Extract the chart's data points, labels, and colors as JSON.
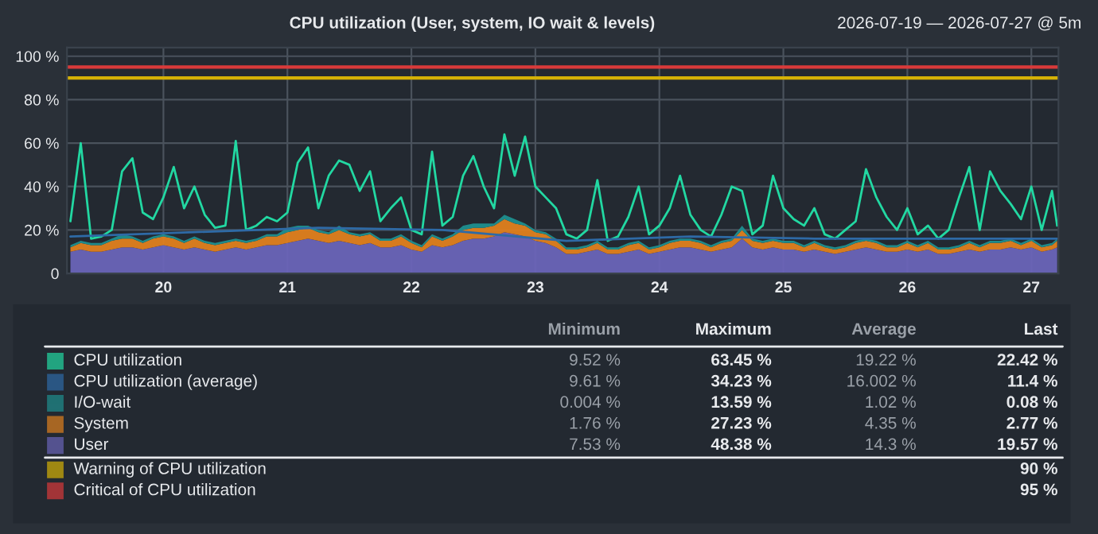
{
  "chart_data": {
    "type": "area",
    "stacked": true,
    "title": "CPU utilization (User, system, IO wait & levels)",
    "subtitle": "2026-07-19 — 2026-07-27 @ 5m",
    "x": [
      "2026-07-19T06:00",
      "2026-07-19T08:00",
      "2026-07-19T10:00",
      "2026-07-19T12:00",
      "2026-07-19T14:00",
      "2026-07-19T16:00",
      "2026-07-19T18:00",
      "2026-07-19T20:00",
      "2026-07-19T22:00",
      "2026-07-20T00:00",
      "2026-07-20T02:00",
      "2026-07-20T04:00",
      "2026-07-20T06:00",
      "2026-07-20T08:00",
      "2026-07-20T10:00",
      "2026-07-20T12:00",
      "2026-07-20T14:00",
      "2026-07-20T16:00",
      "2026-07-20T18:00",
      "2026-07-20T20:00",
      "2026-07-20T22:00",
      "2026-07-21T00:00",
      "2026-07-21T02:00",
      "2026-07-21T04:00",
      "2026-07-21T06:00",
      "2026-07-21T08:00",
      "2026-07-21T10:00",
      "2026-07-21T12:00",
      "2026-07-21T14:00",
      "2026-07-21T16:00",
      "2026-07-21T18:00",
      "2026-07-21T20:00",
      "2026-07-21T22:00",
      "2026-07-22T00:00",
      "2026-07-22T02:00",
      "2026-07-22T04:00",
      "2026-07-22T06:00",
      "2026-07-22T08:00",
      "2026-07-22T10:00",
      "2026-07-22T12:00",
      "2026-07-22T14:00",
      "2026-07-22T16:00",
      "2026-07-22T18:00",
      "2026-07-22T20:00",
      "2026-07-22T22:00",
      "2026-07-23T00:00",
      "2026-07-23T02:00",
      "2026-07-23T04:00",
      "2026-07-23T06:00",
      "2026-07-23T08:00",
      "2026-07-23T10:00",
      "2026-07-23T12:00",
      "2026-07-23T14:00",
      "2026-07-23T16:00",
      "2026-07-23T18:00",
      "2026-07-23T20:00",
      "2026-07-23T22:00",
      "2026-07-24T00:00",
      "2026-07-24T02:00",
      "2026-07-24T04:00",
      "2026-07-24T06:00",
      "2026-07-24T08:00",
      "2026-07-24T10:00",
      "2026-07-24T12:00",
      "2026-07-24T14:00",
      "2026-07-24T16:00",
      "2026-07-24T18:00",
      "2026-07-24T20:00",
      "2026-07-24T22:00",
      "2026-07-25T00:00",
      "2026-07-25T02:00",
      "2026-07-25T04:00",
      "2026-07-25T06:00",
      "2026-07-25T08:00",
      "2026-07-25T10:00",
      "2026-07-25T12:00",
      "2026-07-25T14:00",
      "2026-07-25T16:00",
      "2026-07-25T18:00",
      "2026-07-25T20:00",
      "2026-07-25T22:00",
      "2026-07-26T00:00",
      "2026-07-26T02:00",
      "2026-07-26T04:00",
      "2026-07-26T06:00",
      "2026-07-26T08:00",
      "2026-07-26T10:00",
      "2026-07-26T12:00",
      "2026-07-26T14:00",
      "2026-07-26T16:00",
      "2026-07-26T18:00",
      "2026-07-26T20:00",
      "2026-07-26T22:00",
      "2026-07-27T00:00",
      "2026-07-27T02:00",
      "2026-07-27T04:00",
      "2026-07-27T05:00"
    ],
    "series": [
      {
        "name": "CPU utilization",
        "type": "line",
        "color": "#22d8a2",
        "values": [
          24,
          60,
          16,
          17,
          20,
          47,
          53,
          28,
          25,
          35,
          49,
          30,
          40,
          27,
          21,
          22,
          61,
          20,
          22,
          26,
          24,
          28,
          51,
          58,
          30,
          45,
          52,
          50,
          38,
          47,
          24,
          30,
          35,
          20,
          18,
          56,
          22,
          26,
          45,
          54,
          40,
          30,
          64,
          45,
          63,
          40,
          35,
          30,
          18,
          16,
          20,
          43,
          15,
          17,
          26,
          40,
          18,
          22,
          30,
          45,
          27,
          20,
          17,
          27,
          40,
          38,
          18,
          22,
          45,
          30,
          25,
          22,
          30,
          18,
          16,
          20,
          24,
          48,
          35,
          26,
          20,
          30,
          18,
          22,
          16,
          20,
          35,
          49,
          20,
          47,
          38,
          32,
          25,
          40,
          20,
          38,
          22
        ]
      },
      {
        "name": "CPU utilization (average)",
        "type": "line",
        "color": "#2e6aa6",
        "x": [
          "2026-07-19T06:00",
          "2026-07-20T06:00",
          "2026-07-21T06:00",
          "2026-07-22T06:00",
          "2026-07-23T06:00",
          "2026-07-24T06:00",
          "2026-07-25T06:00",
          "2026-07-26T06:00",
          "2026-07-27T05:00"
        ],
        "values": [
          17,
          19,
          21,
          20,
          15,
          17,
          16,
          16,
          16
        ]
      },
      {
        "name": "User",
        "color": "#6a64b8",
        "values": [
          10,
          11,
          10,
          10,
          11,
          12,
          12,
          11,
          12,
          13,
          12,
          11,
          12,
          11,
          10,
          11,
          12,
          11,
          12,
          13,
          13,
          14,
          15,
          16,
          15,
          14,
          15,
          14,
          13,
          14,
          12,
          12,
          13,
          11,
          10,
          13,
          12,
          13,
          15,
          16,
          16,
          17,
          19,
          18,
          17,
          15,
          14,
          12,
          9,
          9,
          10,
          11,
          9,
          9,
          10,
          11,
          9,
          10,
          11,
          12,
          12,
          11,
          10,
          11,
          12,
          16,
          12,
          11,
          12,
          11,
          11,
          10,
          11,
          10,
          9,
          10,
          11,
          12,
          11,
          10,
          10,
          11,
          10,
          11,
          9,
          9,
          10,
          11,
          10,
          11,
          11,
          12,
          11,
          12,
          10,
          11,
          12
        ]
      },
      {
        "name": "System",
        "color": "#e0801e",
        "values": [
          2,
          3,
          3,
          3,
          4,
          4,
          4,
          3,
          4,
          4,
          4,
          3,
          4,
          3,
          3,
          3,
          3,
          3,
          3,
          4,
          4,
          5,
          5,
          5,
          4,
          4,
          5,
          4,
          4,
          4,
          3,
          3,
          4,
          3,
          2,
          4,
          3,
          4,
          5,
          5,
          5,
          5,
          6,
          5,
          5,
          4,
          4,
          3,
          2,
          2,
          2,
          3,
          2,
          2,
          3,
          3,
          2,
          2,
          3,
          3,
          3,
          3,
          2,
          3,
          3,
          4,
          3,
          3,
          3,
          3,
          3,
          2,
          3,
          2,
          2,
          2,
          3,
          3,
          3,
          2,
          2,
          3,
          2,
          3,
          2,
          2,
          2,
          3,
          2,
          3,
          3,
          3,
          2,
          3,
          2,
          2,
          3
        ]
      },
      {
        "name": "I/O-wait",
        "color": "#1f8f8f",
        "values": [
          1,
          1,
          1,
          1,
          1,
          2,
          1,
          1,
          1,
          1,
          1,
          1,
          1,
          1,
          1,
          1,
          1,
          1,
          1,
          1,
          1,
          2,
          2,
          1,
          1,
          1,
          2,
          1,
          1,
          1,
          1,
          1,
          1,
          1,
          1,
          1,
          1,
          1,
          2,
          2,
          2,
          1,
          2,
          2,
          1,
          1,
          1,
          1,
          1,
          1,
          1,
          1,
          1,
          1,
          1,
          1,
          1,
          1,
          1,
          1,
          1,
          1,
          1,
          1,
          1,
          2,
          1,
          1,
          1,
          1,
          1,
          1,
          1,
          1,
          1,
          1,
          1,
          1,
          1,
          1,
          1,
          1,
          1,
          1,
          1,
          1,
          1,
          1,
          1,
          1,
          1,
          1,
          1,
          1,
          1,
          1,
          1
        ]
      }
    ],
    "ref_lines": [
      {
        "axis": "y",
        "value": 90,
        "label": "Warning of CPU utilization",
        "color": "#d4b106"
      },
      {
        "axis": "y",
        "value": 95,
        "label": "Critical of CPU utilization",
        "color": "#d93a3a"
      }
    ],
    "xlim": [
      "2026-07-19T05:20",
      "2026-07-27T05:15"
    ],
    "xticks": [
      {
        "value": "2026-07-20",
        "label": "20"
      },
      {
        "value": "2026-07-21",
        "label": "21"
      },
      {
        "value": "2026-07-22",
        "label": "22"
      },
      {
        "value": "2026-07-23",
        "label": "23"
      },
      {
        "value": "2026-07-24",
        "label": "24"
      },
      {
        "value": "2026-07-25",
        "label": "25"
      },
      {
        "value": "2026-07-26",
        "label": "26"
      },
      {
        "value": "2026-07-27",
        "label": "27"
      }
    ],
    "ylim": [
      0,
      104
    ],
    "yticks": [
      0,
      {
        "value": 20,
        "label": "20 %"
      },
      {
        "value": 40,
        "label": "40 %"
      },
      {
        "value": 60,
        "label": "60 %"
      },
      {
        "value": 80,
        "label": "80 %"
      },
      {
        "value": 100,
        "label": "100 %"
      }
    ],
    "grid": true,
    "legend": "bottom",
    "annotations": [
      "Minimum",
      "Maximum",
      "Average",
      "Last",
      "9.52 %",
      "63.45 %",
      "19.22 %",
      "22.42 %",
      "9.61 %",
      "34.23 %",
      "16.002 %",
      "11.4 %",
      "0.004 %",
      "13.59 %",
      "1.02 %",
      "0.08 %",
      "1.76 %",
      "27.23 %",
      "4.35 %",
      "2.77 %",
      "7.53 %",
      "48.38 %",
      "14.3 %",
      "19.57 %",
      "90 %",
      "95 %"
    ]
  }
}
